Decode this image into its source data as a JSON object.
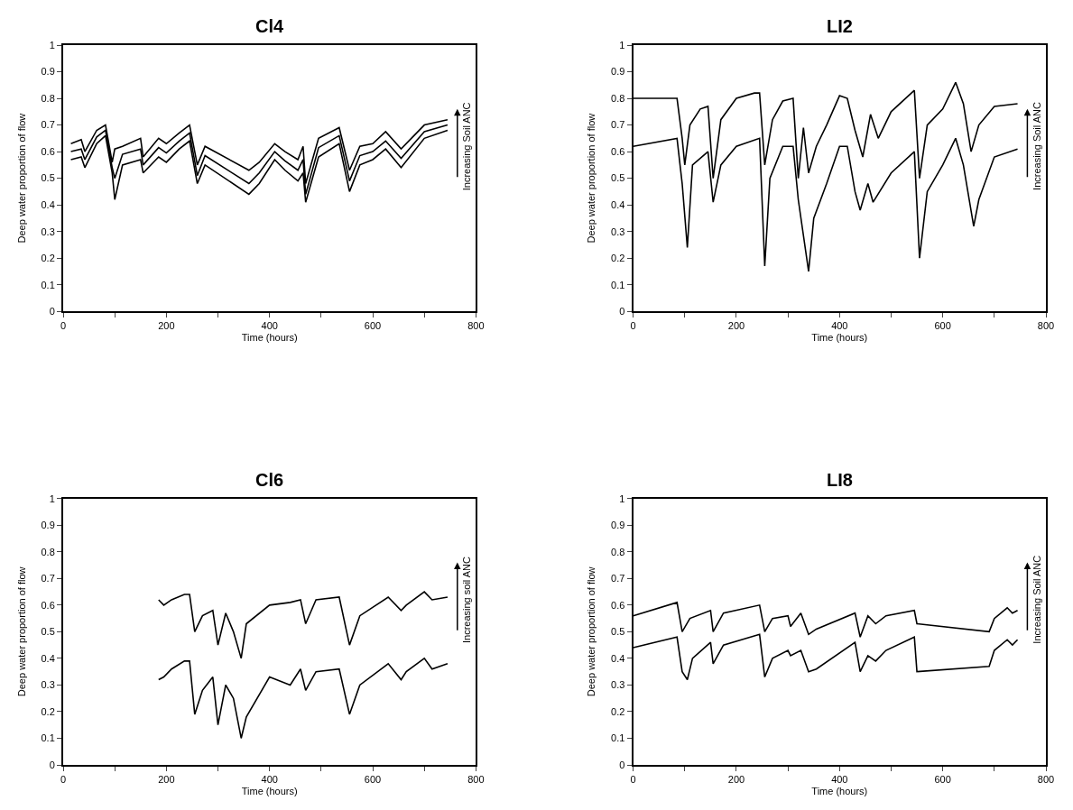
{
  "chart_data": [
    {
      "type": "line",
      "title": "Cl4",
      "xlabel": "Time (hours)",
      "ylabel": "Deep water proportion of flow",
      "annotations": [
        "Increasing Soil ANC"
      ],
      "xlim": [
        0,
        800
      ],
      "ylim": [
        0,
        1
      ],
      "xticks": [
        0,
        {
          "value": 100,
          "label": null
        },
        200,
        {
          "value": 300,
          "label": null
        },
        400,
        {
          "value": 500,
          "label": null
        },
        600,
        {
          "value": 700,
          "label": null
        },
        800
      ],
      "yticks": [
        0,
        0.1,
        0.2,
        0.3,
        0.4,
        0.5,
        0.6,
        0.7,
        0.8,
        0.9,
        1
      ],
      "series": [
        {
          "color": "#000000",
          "x": [
            15,
            35,
            42,
            65,
            82,
            95,
            100,
            115,
            150,
            155,
            185,
            200,
            225,
            245,
            260,
            275,
            360,
            380,
            410,
            430,
            455,
            465,
            470,
            495,
            535,
            555,
            575,
            600,
            625,
            655,
            700,
            745
          ],
          "values": [
            0.63,
            0.645,
            0.6,
            0.68,
            0.7,
            0.56,
            0.61,
            0.62,
            0.65,
            0.58,
            0.65,
            0.63,
            0.67,
            0.7,
            0.55,
            0.62,
            0.53,
            0.56,
            0.63,
            0.6,
            0.57,
            0.62,
            0.48,
            0.65,
            0.69,
            0.53,
            0.62,
            0.63,
            0.675,
            0.61,
            0.7,
            0.72
          ]
        },
        {
          "color": "#000000",
          "x": [
            15,
            35,
            42,
            65,
            82,
            95,
            100,
            115,
            150,
            155,
            185,
            200,
            225,
            245,
            260,
            275,
            360,
            380,
            410,
            430,
            455,
            465,
            470,
            495,
            535,
            555,
            575,
            600,
            625,
            655,
            700,
            745
          ],
          "values": [
            0.6,
            0.61,
            0.57,
            0.655,
            0.68,
            0.54,
            0.5,
            0.59,
            0.61,
            0.55,
            0.615,
            0.595,
            0.64,
            0.67,
            0.51,
            0.585,
            0.48,
            0.52,
            0.6,
            0.565,
            0.53,
            0.57,
            0.44,
            0.615,
            0.66,
            0.49,
            0.585,
            0.6,
            0.64,
            0.575,
            0.675,
            0.7
          ]
        },
        {
          "color": "#000000",
          "x": [
            15,
            35,
            42,
            65,
            82,
            95,
            100,
            115,
            150,
            155,
            185,
            200,
            225,
            245,
            260,
            275,
            360,
            380,
            410,
            430,
            455,
            465,
            470,
            495,
            535,
            555,
            575,
            600,
            625,
            655,
            700,
            745
          ],
          "values": [
            0.57,
            0.58,
            0.54,
            0.63,
            0.66,
            0.52,
            0.42,
            0.55,
            0.57,
            0.52,
            0.58,
            0.56,
            0.61,
            0.64,
            0.48,
            0.55,
            0.44,
            0.48,
            0.57,
            0.53,
            0.49,
            0.52,
            0.41,
            0.58,
            0.63,
            0.45,
            0.55,
            0.57,
            0.61,
            0.54,
            0.65,
            0.68
          ]
        }
      ]
    },
    {
      "type": "line",
      "title": "LI2",
      "xlabel": "Time (hours)",
      "ylabel": "Deep water proportion of flow",
      "annotations": [
        "Increasing Soil ANC"
      ],
      "xlim": [
        0,
        800
      ],
      "ylim": [
        0,
        1
      ],
      "xticks": [
        0,
        {
          "value": 100,
          "label": null
        },
        200,
        {
          "value": 300,
          "label": null
        },
        400,
        {
          "value": 500,
          "label": null
        },
        600,
        {
          "value": 700,
          "label": null
        },
        800
      ],
      "yticks": [
        0,
        0.1,
        0.2,
        0.3,
        0.4,
        0.5,
        0.6,
        0.7,
        0.8,
        0.9,
        1
      ],
      "series": [
        {
          "color": "#000000",
          "x": [
            0,
            85,
            95,
            100,
            110,
            130,
            145,
            155,
            170,
            200,
            235,
            245,
            255,
            270,
            290,
            310,
            320,
            330,
            340,
            355,
            375,
            400,
            415,
            430,
            445,
            460,
            475,
            500,
            545,
            555,
            570,
            600,
            625,
            640,
            655,
            670,
            700,
            745
          ],
          "values": [
            0.8,
            0.8,
            0.65,
            0.55,
            0.7,
            0.76,
            0.77,
            0.5,
            0.72,
            0.8,
            0.82,
            0.82,
            0.55,
            0.72,
            0.79,
            0.8,
            0.5,
            0.69,
            0.52,
            0.62,
            0.7,
            0.81,
            0.8,
            0.68,
            0.58,
            0.74,
            0.65,
            0.75,
            0.83,
            0.5,
            0.7,
            0.76,
            0.86,
            0.78,
            0.6,
            0.7,
            0.77,
            0.78
          ]
        },
        {
          "color": "#000000",
          "x": [
            0,
            85,
            95,
            105,
            115,
            145,
            155,
            170,
            200,
            245,
            255,
            265,
            290,
            310,
            320,
            340,
            350,
            375,
            400,
            415,
            430,
            440,
            455,
            465,
            500,
            545,
            555,
            570,
            600,
            625,
            640,
            660,
            670,
            700,
            745
          ],
          "values": [
            0.62,
            0.65,
            0.48,
            0.24,
            0.55,
            0.6,
            0.41,
            0.55,
            0.62,
            0.65,
            0.17,
            0.5,
            0.62,
            0.62,
            0.42,
            0.15,
            0.35,
            0.48,
            0.62,
            0.62,
            0.45,
            0.38,
            0.48,
            0.41,
            0.52,
            0.6,
            0.2,
            0.45,
            0.55,
            0.65,
            0.55,
            0.32,
            0.42,
            0.58,
            0.61
          ]
        }
      ]
    },
    {
      "type": "line",
      "title": "Cl6",
      "xlabel": "Time (hours)",
      "ylabel": "Deep water proportion of flow",
      "annotations": [
        "Increasing soil ANC"
      ],
      "xlim": [
        0,
        800
      ],
      "ylim": [
        0,
        1
      ],
      "xticks": [
        0,
        {
          "value": 100,
          "label": null
        },
        200,
        {
          "value": 300,
          "label": null
        },
        400,
        {
          "value": 500,
          "label": null
        },
        600,
        {
          "value": 700,
          "label": null
        },
        800
      ],
      "yticks": [
        0,
        0.1,
        0.2,
        0.3,
        0.4,
        0.5,
        0.6,
        0.7,
        0.8,
        0.9,
        1
      ],
      "series": [
        {
          "color": "#000000",
          "x": [
            185,
            195,
            210,
            235,
            245,
            255,
            270,
            290,
            300,
            315,
            330,
            345,
            355,
            400,
            440,
            460,
            470,
            490,
            535,
            555,
            575,
            630,
            655,
            665,
            700,
            715,
            745
          ],
          "values": [
            0.62,
            0.6,
            0.62,
            0.64,
            0.64,
            0.5,
            0.56,
            0.58,
            0.45,
            0.57,
            0.5,
            0.4,
            0.53,
            0.6,
            0.61,
            0.62,
            0.53,
            0.62,
            0.63,
            0.45,
            0.56,
            0.63,
            0.58,
            0.6,
            0.65,
            0.62,
            0.63
          ]
        },
        {
          "color": "#000000",
          "x": [
            185,
            195,
            210,
            235,
            245,
            255,
            270,
            290,
            300,
            315,
            330,
            345,
            355,
            400,
            440,
            460,
            470,
            490,
            535,
            555,
            575,
            630,
            655,
            665,
            700,
            715,
            745
          ],
          "values": [
            0.32,
            0.33,
            0.36,
            0.39,
            0.39,
            0.19,
            0.28,
            0.33,
            0.15,
            0.3,
            0.25,
            0.1,
            0.18,
            0.33,
            0.3,
            0.36,
            0.28,
            0.35,
            0.36,
            0.19,
            0.3,
            0.38,
            0.32,
            0.35,
            0.4,
            0.36,
            0.38
          ]
        }
      ]
    },
    {
      "type": "line",
      "title": "LI8",
      "xlabel": "Time (hours)",
      "ylabel": "Deep water proportion of flow",
      "annotations": [
        "Increasing Soil ANC"
      ],
      "xlim": [
        0,
        800
      ],
      "ylim": [
        0,
        1
      ],
      "xticks": [
        0,
        {
          "value": 100,
          "label": null
        },
        200,
        {
          "value": 300,
          "label": null
        },
        400,
        {
          "value": 500,
          "label": null
        },
        600,
        {
          "value": 700,
          "label": null
        },
        800
      ],
      "yticks": [
        0,
        0.1,
        0.2,
        0.3,
        0.4,
        0.5,
        0.6,
        0.7,
        0.8,
        0.9,
        1
      ],
      "series": [
        {
          "color": "#000000",
          "x": [
            0,
            85,
            95,
            110,
            150,
            155,
            175,
            245,
            255,
            270,
            300,
            305,
            325,
            340,
            355,
            430,
            440,
            455,
            470,
            490,
            545,
            550,
            690,
            700,
            725,
            735,
            745
          ],
          "values": [
            0.56,
            0.61,
            0.5,
            0.55,
            0.58,
            0.5,
            0.57,
            0.6,
            0.5,
            0.55,
            0.56,
            0.52,
            0.57,
            0.49,
            0.51,
            0.57,
            0.48,
            0.56,
            0.53,
            0.56,
            0.58,
            0.53,
            0.5,
            0.55,
            0.59,
            0.57,
            0.58
          ]
        },
        {
          "color": "#000000",
          "x": [
            0,
            85,
            95,
            105,
            115,
            150,
            155,
            175,
            245,
            255,
            270,
            300,
            305,
            325,
            340,
            355,
            430,
            440,
            455,
            470,
            490,
            545,
            550,
            690,
            700,
            725,
            735,
            745
          ],
          "values": [
            0.44,
            0.48,
            0.35,
            0.32,
            0.4,
            0.46,
            0.38,
            0.45,
            0.49,
            0.33,
            0.4,
            0.43,
            0.41,
            0.43,
            0.35,
            0.36,
            0.46,
            0.35,
            0.41,
            0.39,
            0.43,
            0.48,
            0.35,
            0.37,
            0.43,
            0.47,
            0.45,
            0.47
          ]
        }
      ]
    }
  ]
}
